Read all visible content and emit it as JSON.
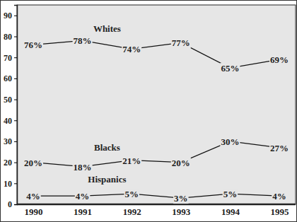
{
  "chart_data": {
    "type": "line",
    "categories": [
      "1990",
      "1991",
      "1992",
      "1993",
      "1994",
      "1995"
    ],
    "series": [
      {
        "name": "Whites",
        "color": "#111111",
        "values": [
          76,
          78,
          74,
          77,
          65,
          69
        ],
        "value_labels": [
          "76%",
          "78%",
          "74%",
          "77%",
          "65%",
          "69%"
        ]
      },
      {
        "name": "Blacks",
        "color": "#111111",
        "values": [
          20,
          18,
          21,
          20,
          30,
          27
        ],
        "value_labels": [
          "20%",
          "18%",
          "21%",
          "20%",
          "30%",
          "27%"
        ]
      },
      {
        "name": "Hispanics",
        "color": "#111111",
        "values": [
          4,
          4,
          5,
          3,
          5,
          4
        ],
        "value_labels": [
          "4%",
          "4%",
          "5%",
          "3%",
          "5%",
          "4%"
        ]
      }
    ],
    "ylim": [
      0,
      95
    ],
    "yticks": [
      0,
      10,
      20,
      30,
      40,
      50,
      60,
      70,
      80,
      90
    ],
    "data_labels": true,
    "grid": false
  }
}
